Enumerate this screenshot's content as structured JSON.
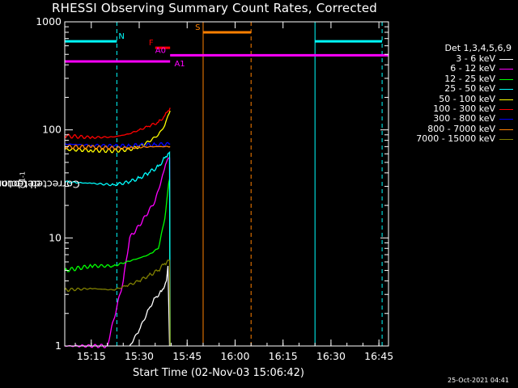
{
  "title": "RHESSI Observing Summary Count Rates, Corrected",
  "timestamp": "25-Oct-2021 04:41",
  "chart_data": {
    "type": "line",
    "title": "RHESSI Observing Summary Count Rates, Corrected",
    "xlabel": "Start Time (02-Nov-03 15:06:42)",
    "ylabel_main": "Corrected Count Rate (s",
    "ylabel_sup1": "-1",
    "ylabel_mid": " detector",
    "ylabel_sup2": "-1",
    "ylabel_end": ")",
    "xlim": [
      "15:06:42",
      "16:48:00"
    ],
    "ylim": [
      1,
      1000
    ],
    "y_scale": "log",
    "x_ticks": [
      "15:15",
      "15:30",
      "15:45",
      "16:00",
      "16:15",
      "16:30",
      "16:45"
    ],
    "y_ticks": [
      "1",
      "10",
      "100",
      "1000"
    ],
    "legend_title": "Det 1,3,4,5,6,9",
    "legend_placement": "right",
    "series": [
      {
        "name": "3 - 6 keV",
        "color": "#ffffff",
        "x": [
          "15:27:00",
          "15:30:00",
          "15:33:00",
          "15:35:00",
          "15:37:00",
          "15:38:30",
          "15:39:00",
          "15:39:30"
        ],
        "y": [
          1.0,
          1.4,
          2.2,
          2.8,
          3.2,
          4.0,
          5.5,
          1.0
        ]
      },
      {
        "name": "6 - 12 keV",
        "color": "#ff00ff",
        "x": [
          "15:06:42",
          "15:20:00",
          "15:25:00",
          "15:27:00",
          "15:30:00",
          "15:32:00",
          "15:35:00",
          "15:37:00",
          "15:38:30",
          "15:39:30",
          "15:39:40"
        ],
        "y": [
          1.0,
          1.0,
          4.0,
          10.0,
          13.0,
          16.0,
          22.0,
          35.0,
          50.0,
          55.0,
          1.0
        ]
      },
      {
        "name": "12 - 25 keV",
        "color": "#00ff00",
        "x": [
          "15:06:42",
          "15:15:00",
          "15:22:00",
          "15:26:00",
          "15:30:00",
          "15:33:00",
          "15:36:00",
          "15:38:00",
          "15:39:00",
          "15:39:30",
          "15:39:40"
        ],
        "y": [
          5.0,
          5.5,
          5.5,
          6.0,
          6.5,
          7.0,
          8.0,
          15.0,
          28.0,
          35.0,
          1.0
        ]
      },
      {
        "name": "25 - 50 keV",
        "color": "#00ffff",
        "x": [
          "15:06:42",
          "15:15:00",
          "15:22:00",
          "15:27:00",
          "15:30:00",
          "15:33:00",
          "15:36:00",
          "15:38:00",
          "15:39:00",
          "15:39:30",
          "15:39:40"
        ],
        "y": [
          33.0,
          32.0,
          31.0,
          33.0,
          36.0,
          40.0,
          46.0,
          55.0,
          60.0,
          62.0,
          1.0
        ]
      },
      {
        "name": "50 - 100 keV",
        "color": "#ffff00",
        "x": [
          "15:06:42",
          "15:15:00",
          "15:22:00",
          "15:27:00",
          "15:30:00",
          "15:33:00",
          "15:36:00",
          "15:38:00",
          "15:39:00",
          "15:39:40"
        ],
        "y": [
          66.0,
          65.0,
          64.0,
          66.0,
          70.0,
          78.0,
          90.0,
          110.0,
          135.0,
          150.0
        ]
      },
      {
        "name": "100 - 300 keV",
        "color": "#ff0000",
        "x": [
          "15:06:42",
          "15:15:00",
          "15:22:00",
          "15:27:00",
          "15:30:00",
          "15:33:00",
          "15:36:00",
          "15:38:00",
          "15:39:00",
          "15:39:40"
        ],
        "y": [
          88.0,
          85.0,
          86.0,
          92.0,
          100.0,
          108.0,
          118.0,
          135.0,
          150.0,
          160.0
        ]
      },
      {
        "name": "300 - 800 keV",
        "color": "#0000ff",
        "x": [
          "15:06:42",
          "15:15:00",
          "15:22:00",
          "15:27:00",
          "15:30:00",
          "15:35:00",
          "15:39:40"
        ],
        "y": [
          74.0,
          72.0,
          71.0,
          71.0,
          72.0,
          73.0,
          74.0
        ]
      },
      {
        "name": "800 - 7000 keV",
        "color": "#ff8000",
        "x": [
          "15:06:42",
          "15:15:00",
          "15:22:00",
          "15:27:00",
          "15:30:00",
          "15:35:00",
          "15:39:40"
        ],
        "y": [
          70.0,
          69.0,
          68.0,
          68.0,
          69.0,
          70.0,
          70.0
        ]
      },
      {
        "name": "7000 - 15000 keV",
        "color": "#808000",
        "x": [
          "15:06:42",
          "15:15:00",
          "15:22:00",
          "15:26:00",
          "15:30:00",
          "15:33:00",
          "15:36:00",
          "15:38:00",
          "15:39:30",
          "15:39:40"
        ],
        "y": [
          3.3,
          3.4,
          3.3,
          3.6,
          4.0,
          4.5,
          5.0,
          5.8,
          6.2,
          1.0
        ]
      }
    ],
    "flag_bars": [
      {
        "label": "N",
        "color": "#00ffff",
        "segments": [
          [
            "15:06:42",
            "15:23:00"
          ],
          [
            "16:25:00",
            "16:46:00"
          ]
        ],
        "y": 660,
        "label_x": "15:23:30"
      },
      {
        "label": "S",
        "color": "#ff8000",
        "segments": [
          [
            "15:50:00",
            "16:05:00"
          ]
        ],
        "y": 800,
        "label_x": "15:47:30"
      },
      {
        "label": "F",
        "color": "#ff0000",
        "segments": [
          [
            "15:35:00",
            "15:39:40"
          ]
        ],
        "y": 575,
        "label_x": "15:33:00"
      },
      {
        "label": "A0",
        "color": "#ff00ff",
        "segments": [
          [
            "15:39:40",
            "16:48:00"
          ]
        ],
        "y": 490,
        "label_x": "15:35:00"
      },
      {
        "label": "A1",
        "color": "#ff00ff",
        "segments": [
          [
            "15:06:42",
            "15:39:40"
          ]
        ],
        "y": 430,
        "label_x": "15:41:00"
      }
    ],
    "vlines": [
      {
        "color": "#00ffff",
        "x": "15:06:42",
        "style": "solid"
      },
      {
        "color": "#00ffff",
        "x": "15:23:00",
        "style": "dashed"
      },
      {
        "color": "#ff8000",
        "x": "15:50:00",
        "style": "solid"
      },
      {
        "color": "#ff8000",
        "x": "16:05:00",
        "style": "dashed"
      },
      {
        "color": "#00ffff",
        "x": "16:25:00",
        "style": "solid"
      },
      {
        "color": "#00ffff",
        "x": "16:46:00",
        "style": "dashed"
      }
    ]
  }
}
